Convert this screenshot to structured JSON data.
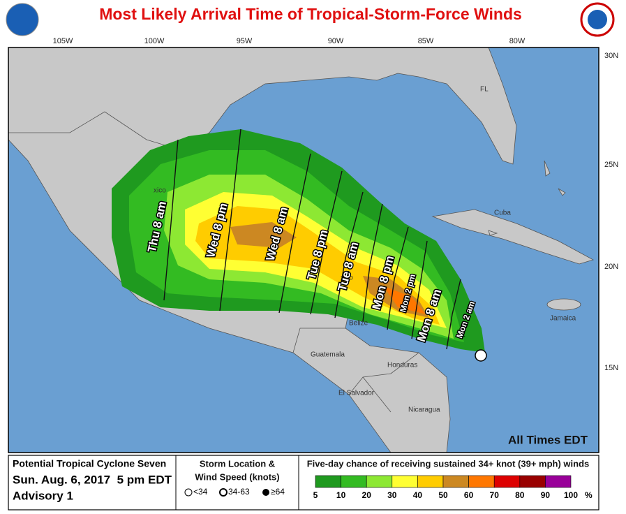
{
  "header": {
    "title": "Most Likely Arrival Time of Tropical-Storm-Force Winds"
  },
  "map": {
    "longitudes": [
      "105W",
      "100W",
      "95W",
      "90W",
      "85W",
      "80W"
    ],
    "latitudes": [
      "30N",
      "25N",
      "20N",
      "15N"
    ],
    "places": [
      "FL",
      "Cuba",
      "Jamaica",
      "Guatemala",
      "Honduras",
      "El Salvador",
      "Nicaragua",
      "Belize",
      "xico",
      "xico"
    ],
    "times": [
      "Thu 8 am",
      "Wed 8 pm",
      "Wed 8 am",
      "Tue 8 pm",
      "Tue 8 am",
      "Mon 8 pm",
      "Mon 2 pm",
      "Mon 8 am",
      "Mon 2 am"
    ],
    "note": "All Times EDT"
  },
  "footer": {
    "storm": [
      "Potential Tropical Cyclone Seven",
      "Sun. Aug. 6, 2017  5 pm EDT",
      "Advisory 1"
    ],
    "legend_title": [
      "Storm Location &",
      "Wind Speed (knots)"
    ],
    "symbols": [
      "<34",
      "34-63",
      "≥64"
    ],
    "scale_title": "Five-day chance of receiving sustained 34+ knot (39+ mph) winds",
    "scale": {
      "labels": [
        "5",
        "10",
        "20",
        "30",
        "40",
        "50",
        "60",
        "70",
        "80",
        "90",
        "100"
      ],
      "unit": "%",
      "colors": [
        "#1f9a1f",
        "#33bb22",
        "#8de833",
        "#ffff33",
        "#ffcc00",
        "#cc8822",
        "#ff7700",
        "#dd0000",
        "#990000",
        "#990099"
      ]
    }
  }
}
